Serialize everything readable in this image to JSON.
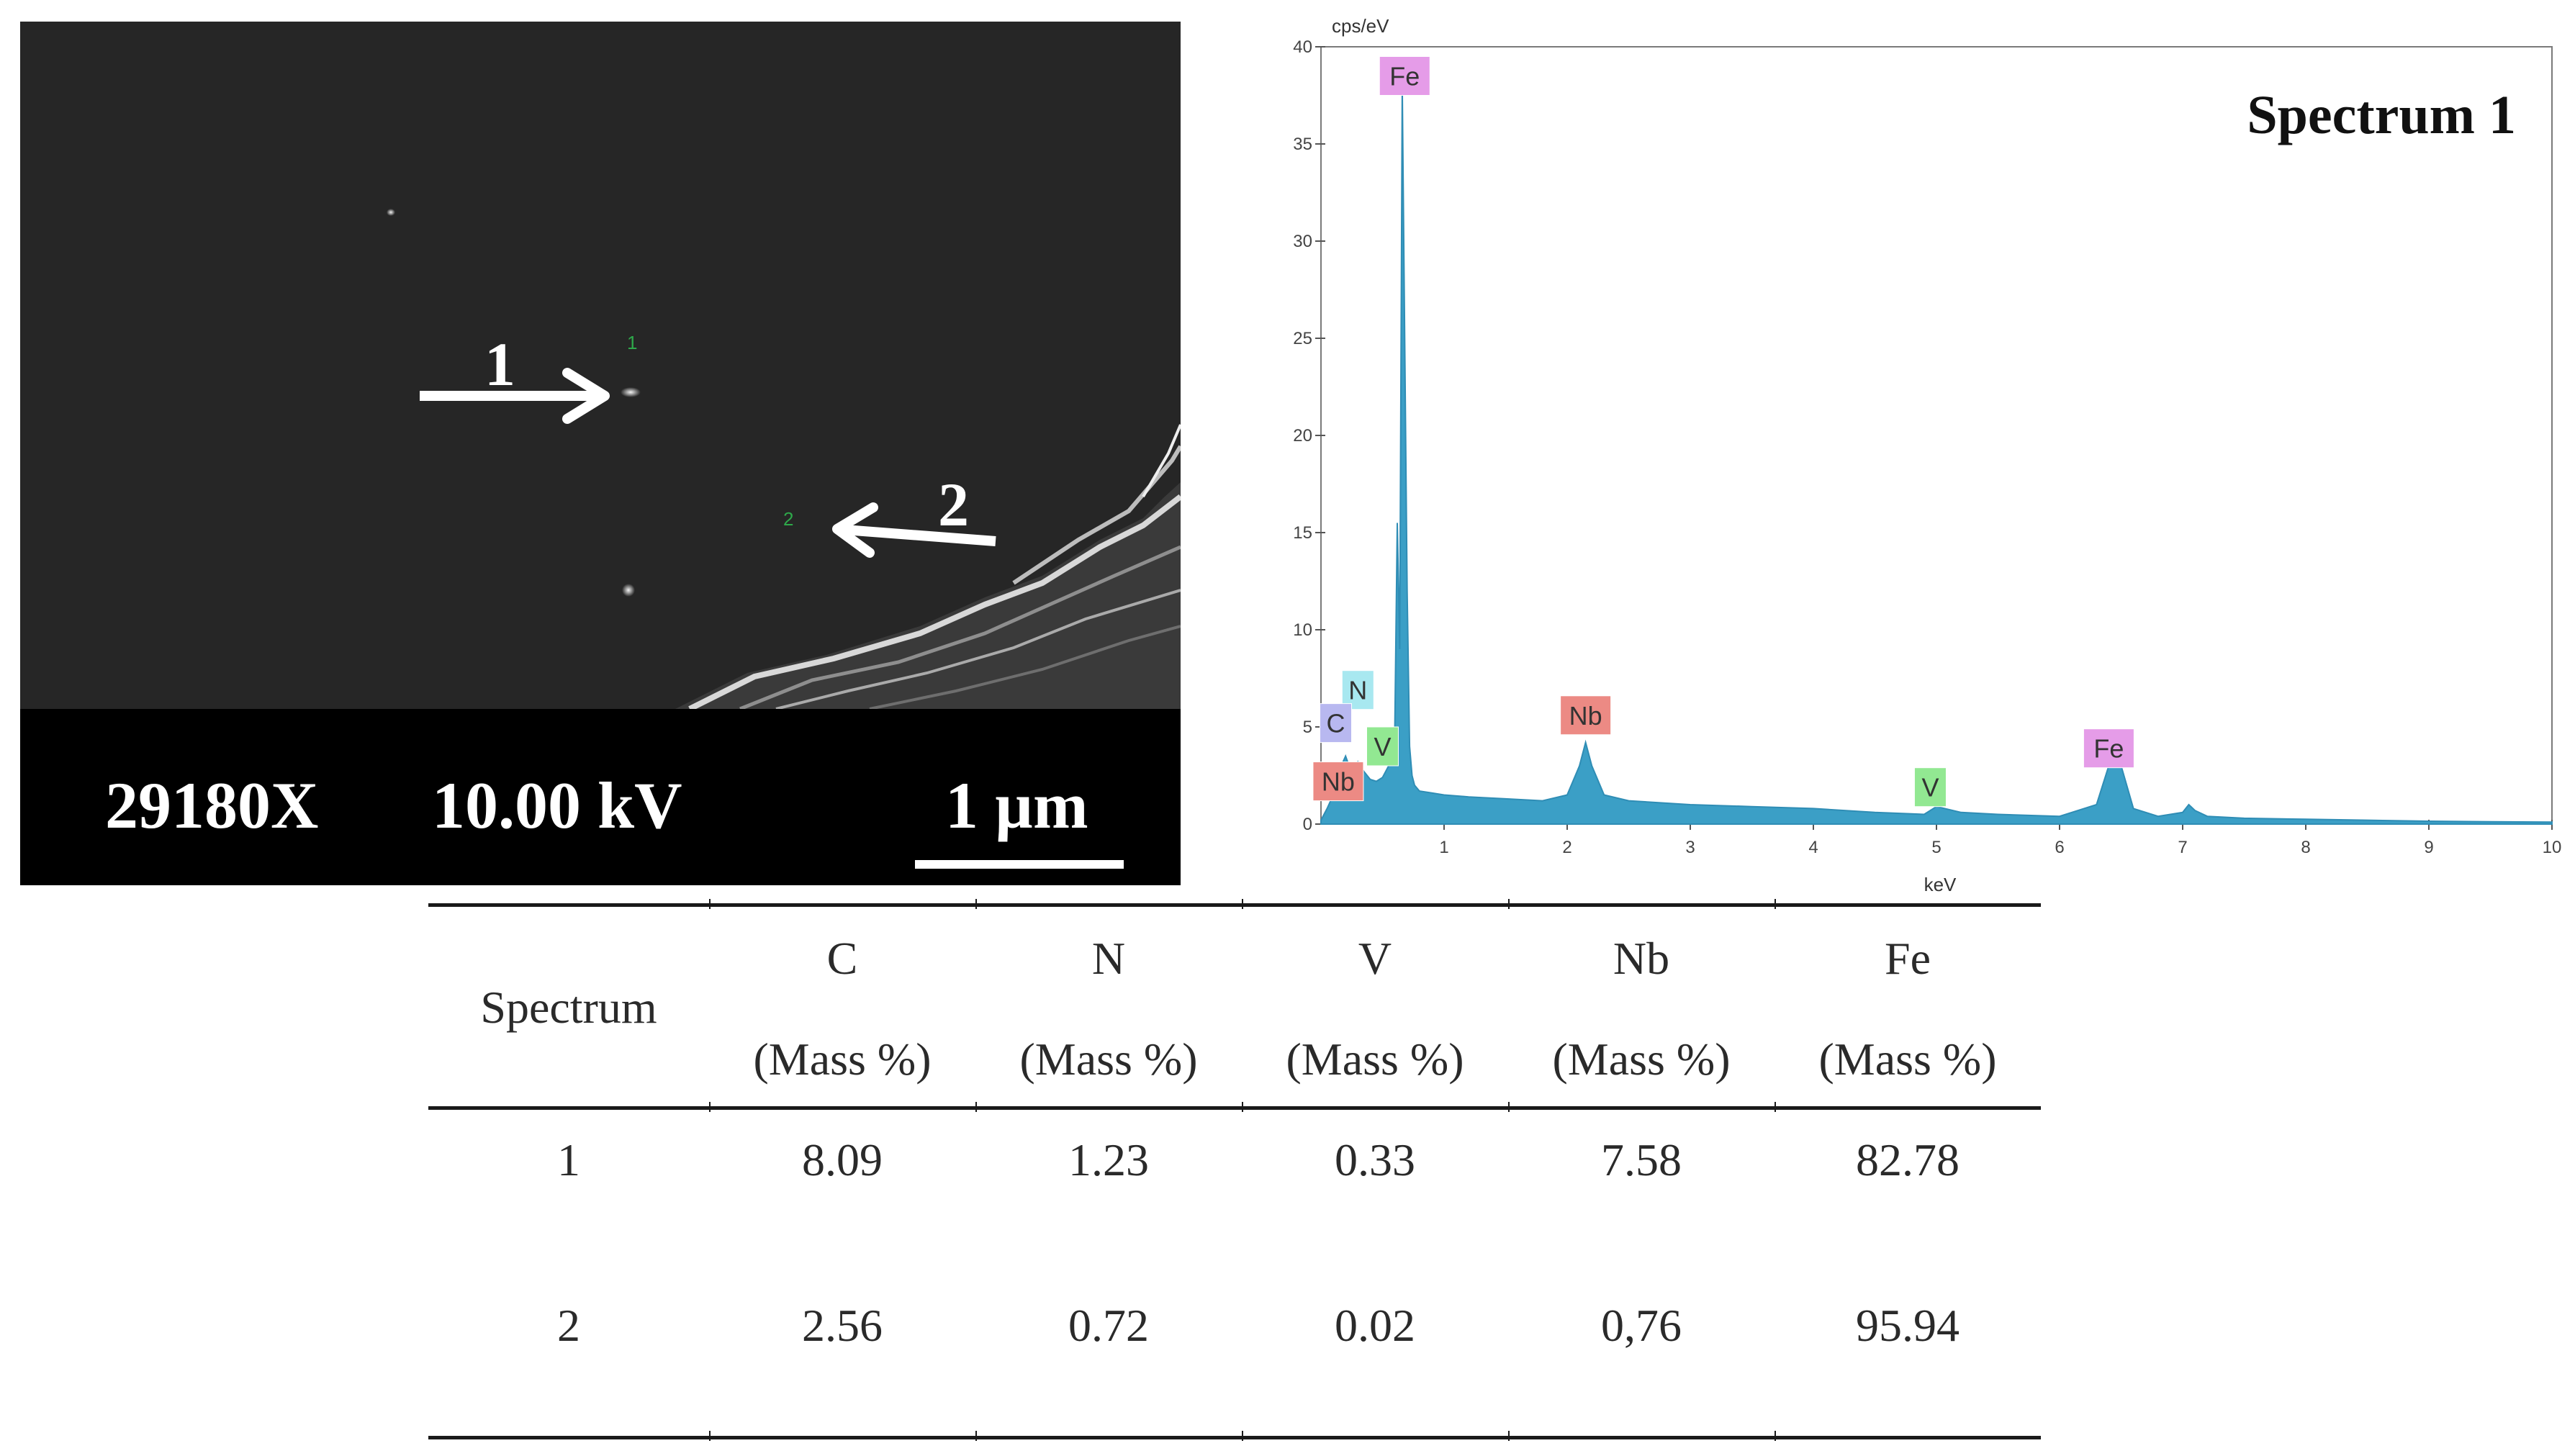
{
  "micrograph": {
    "magnification": "29180X",
    "voltage": "10.00 kV",
    "scale_bar": "1 µm",
    "points": [
      {
        "label": "1",
        "marker": "1"
      },
      {
        "label": "2",
        "marker": "2"
      }
    ]
  },
  "chart_data": {
    "type": "line",
    "title": "Spectrum 1",
    "ylabel": "cps/eV",
    "xlabel": "keV",
    "xlim": [
      0,
      10
    ],
    "ylim": [
      0,
      40
    ],
    "x_ticks": [
      "1",
      "2",
      "3",
      "4",
      "5",
      "6",
      "7",
      "8",
      "9",
      "10"
    ],
    "y_ticks": [
      "0",
      "5",
      "10",
      "15",
      "20",
      "25",
      "30",
      "35",
      "40"
    ],
    "series": [
      {
        "x": [
          0,
          0.05,
          0.1,
          0.15,
          0.2,
          0.25,
          0.28,
          0.3,
          0.35,
          0.4,
          0.45,
          0.5,
          0.55,
          0.6,
          0.62,
          0.64,
          0.66,
          0.68,
          0.7,
          0.72,
          0.74,
          0.76,
          0.8,
          0.9,
          1.0,
          1.2,
          1.5,
          1.8,
          2.0,
          2.1,
          2.15,
          2.2,
          2.3,
          2.5,
          3.0,
          3.5,
          4.0,
          4.5,
          4.9,
          5.0,
          5.2,
          5.5,
          6.0,
          6.3,
          6.4,
          6.45,
          6.5,
          6.6,
          6.8,
          7.0,
          7.05,
          7.1,
          7.2,
          7.5,
          8.0,
          8.5,
          9.0,
          9.5,
          10.0
        ],
        "y": [
          0.2,
          0.8,
          1.5,
          2.8,
          3.5,
          2.6,
          2.9,
          3.2,
          2.7,
          2.3,
          2.2,
          2.4,
          3.0,
          5.0,
          15.5,
          9.0,
          38.0,
          25.0,
          12.0,
          4.0,
          2.5,
          2.0,
          1.7,
          1.6,
          1.5,
          1.4,
          1.3,
          1.2,
          1.5,
          3.0,
          4.2,
          3.0,
          1.5,
          1.2,
          1.0,
          0.9,
          0.8,
          0.6,
          0.5,
          0.9,
          0.6,
          0.5,
          0.4,
          1.0,
          3.0,
          3.9,
          3.0,
          0.8,
          0.4,
          0.6,
          1.0,
          0.7,
          0.4,
          0.3,
          0.25,
          0.2,
          0.15,
          0.12,
          0.1
        ]
      }
    ],
    "peak_labels": [
      {
        "text": "Fe",
        "x": 0.68,
        "y": 38.5,
        "color": "#e59ce8"
      },
      {
        "text": "N",
        "x": 0.3,
        "y": 6.9,
        "color": "#a8e8f0"
      },
      {
        "text": "C",
        "x": 0.12,
        "y": 5.2,
        "color": "#b8b8f0"
      },
      {
        "text": "V",
        "x": 0.5,
        "y": 4.0,
        "color": "#92e892"
      },
      {
        "text": "Nb",
        "x": 0.14,
        "y": 2.2,
        "color": "#ec8a84"
      },
      {
        "text": "Nb",
        "x": 2.15,
        "y": 5.6,
        "color": "#ec8a84"
      },
      {
        "text": "V",
        "x": 4.95,
        "y": 1.9,
        "color": "#92e892"
      },
      {
        "text": "Fe",
        "x": 6.4,
        "y": 3.9,
        "color": "#e59ce8"
      }
    ]
  },
  "table": {
    "headers": [
      {
        "line1": "Spectrum",
        "line2": ""
      },
      {
        "line1": "C",
        "line2": "(Mass %)"
      },
      {
        "line1": "N",
        "line2": "(Mass %)"
      },
      {
        "line1": "V",
        "line2": "(Mass %)"
      },
      {
        "line1": "Nb",
        "line2": "(Mass %)"
      },
      {
        "line1": "Fe",
        "line2": "(Mass %)"
      }
    ],
    "rows": [
      [
        "1",
        "8.09",
        "1.23",
        "0.33",
        "7.58",
        "82.78"
      ],
      [
        "2",
        "2.56",
        "0.72",
        "0.02",
        "0,76",
        "95.94"
      ]
    ]
  }
}
